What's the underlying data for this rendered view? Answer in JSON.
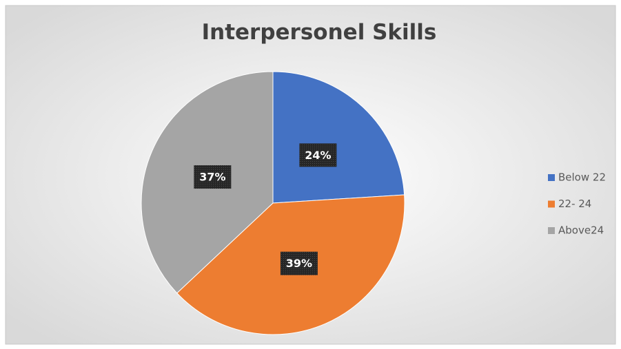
{
  "chart_data": {
    "type": "pie",
    "title": "Interpersonel Skills",
    "categories": [
      "Below 22",
      "22- 24",
      "Above24"
    ],
    "values": [
      24,
      39,
      37
    ],
    "value_labels": [
      "24%",
      "39%",
      "37%"
    ],
    "colors": [
      "#4472c4",
      "#ed7d31",
      "#a5a5a5"
    ],
    "legend": "right"
  }
}
